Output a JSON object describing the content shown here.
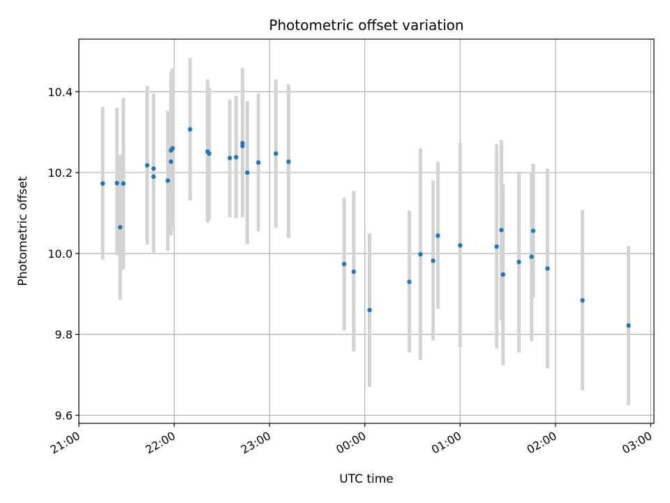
{
  "chart_data": {
    "type": "scatter",
    "title": "Photometric offset variation",
    "xlabel": "UTC time",
    "ylabel": "Photometric offset",
    "x_unit": "UTC",
    "x_ticks": [
      "21:00",
      "22:00",
      "23:00",
      "00:00",
      "01:00",
      "02:00",
      "03:00"
    ],
    "xlim": [
      "21:00",
      "03:02"
    ],
    "y_ticks": [
      9.6,
      9.8,
      10.0,
      10.2,
      10.4
    ],
    "ylim": [
      9.58,
      10.53
    ],
    "grid": true,
    "marker_color": "#1f77b4",
    "errorbar_color": "#d3d3d3",
    "points": [
      {
        "t": "21:15",
        "y": 10.173,
        "lo": 9.985,
        "hi": 10.362
      },
      {
        "t": "21:24",
        "y": 10.174,
        "lo": 9.996,
        "hi": 10.36
      },
      {
        "t": "21:26",
        "y": 10.065,
        "lo": 9.885,
        "hi": 10.244
      },
      {
        "t": "21:28",
        "y": 10.173,
        "lo": 9.96,
        "hi": 10.385
      },
      {
        "t": "21:43",
        "y": 10.218,
        "lo": 10.022,
        "hi": 10.414
      },
      {
        "t": "21:47",
        "y": 10.19,
        "lo": 10.002,
        "hi": 10.38
      },
      {
        "t": "21:47",
        "y": 10.21,
        "lo": 10.025,
        "hi": 10.395
      },
      {
        "t": "21:56",
        "y": 10.18,
        "lo": 10.006,
        "hi": 10.353
      },
      {
        "t": "21:58",
        "y": 10.227,
        "lo": 10.045,
        "hi": 10.41
      },
      {
        "t": "21:58",
        "y": 10.255,
        "lo": 10.06,
        "hi": 10.45
      },
      {
        "t": "21:59",
        "y": 10.26,
        "lo": 10.063,
        "hi": 10.457
      },
      {
        "t": "22:10",
        "y": 10.307,
        "lo": 10.131,
        "hi": 10.484
      },
      {
        "t": "22:21",
        "y": 10.252,
        "lo": 10.076,
        "hi": 10.43
      },
      {
        "t": "22:22",
        "y": 10.247,
        "lo": 10.083,
        "hi": 10.41
      },
      {
        "t": "22:35",
        "y": 10.236,
        "lo": 10.09,
        "hi": 10.38
      },
      {
        "t": "22:39",
        "y": 10.238,
        "lo": 10.087,
        "hi": 10.39
      },
      {
        "t": "22:43",
        "y": 10.266,
        "lo": 10.09,
        "hi": 10.44
      },
      {
        "t": "22:43",
        "y": 10.273,
        "lo": 10.09,
        "hi": 10.458
      },
      {
        "t": "22:46",
        "y": 10.2,
        "lo": 10.023,
        "hi": 10.377
      },
      {
        "t": "22:53",
        "y": 10.225,
        "lo": 10.055,
        "hi": 10.395
      },
      {
        "t": "23:04",
        "y": 10.247,
        "lo": 10.064,
        "hi": 10.43
      },
      {
        "t": "23:12",
        "y": 10.227,
        "lo": 10.038,
        "hi": 10.418
      },
      {
        "t": "23:47",
        "y": 9.974,
        "lo": 9.81,
        "hi": 10.138
      },
      {
        "t": "23:53",
        "y": 9.955,
        "lo": 9.758,
        "hi": 10.155
      },
      {
        "t": "00:03",
        "y": 9.86,
        "lo": 9.67,
        "hi": 10.05
      },
      {
        "t": "00:28",
        "y": 9.93,
        "lo": 9.755,
        "hi": 10.106
      },
      {
        "t": "00:35",
        "y": 9.998,
        "lo": 9.737,
        "hi": 10.26
      },
      {
        "t": "00:43",
        "y": 9.982,
        "lo": 9.785,
        "hi": 10.18
      },
      {
        "t": "00:46",
        "y": 10.044,
        "lo": 9.863,
        "hi": 10.227
      },
      {
        "t": "01:00",
        "y": 10.02,
        "lo": 9.768,
        "hi": 10.273
      },
      {
        "t": "01:23",
        "y": 10.017,
        "lo": 9.765,
        "hi": 10.27
      },
      {
        "t": "01:26",
        "y": 10.058,
        "lo": 9.835,
        "hi": 10.28
      },
      {
        "t": "01:27",
        "y": 9.948,
        "lo": 9.724,
        "hi": 10.172
      },
      {
        "t": "01:37",
        "y": 9.979,
        "lo": 9.755,
        "hi": 10.203
      },
      {
        "t": "01:45",
        "y": 9.992,
        "lo": 9.783,
        "hi": 10.2
      },
      {
        "t": "01:46",
        "y": 10.056,
        "lo": 9.89,
        "hi": 10.222
      },
      {
        "t": "01:55",
        "y": 9.963,
        "lo": 9.716,
        "hi": 10.21
      },
      {
        "t": "02:17",
        "y": 9.884,
        "lo": 9.662,
        "hi": 10.107
      },
      {
        "t": "02:46",
        "y": 9.822,
        "lo": 9.625,
        "hi": 10.019
      }
    ]
  }
}
